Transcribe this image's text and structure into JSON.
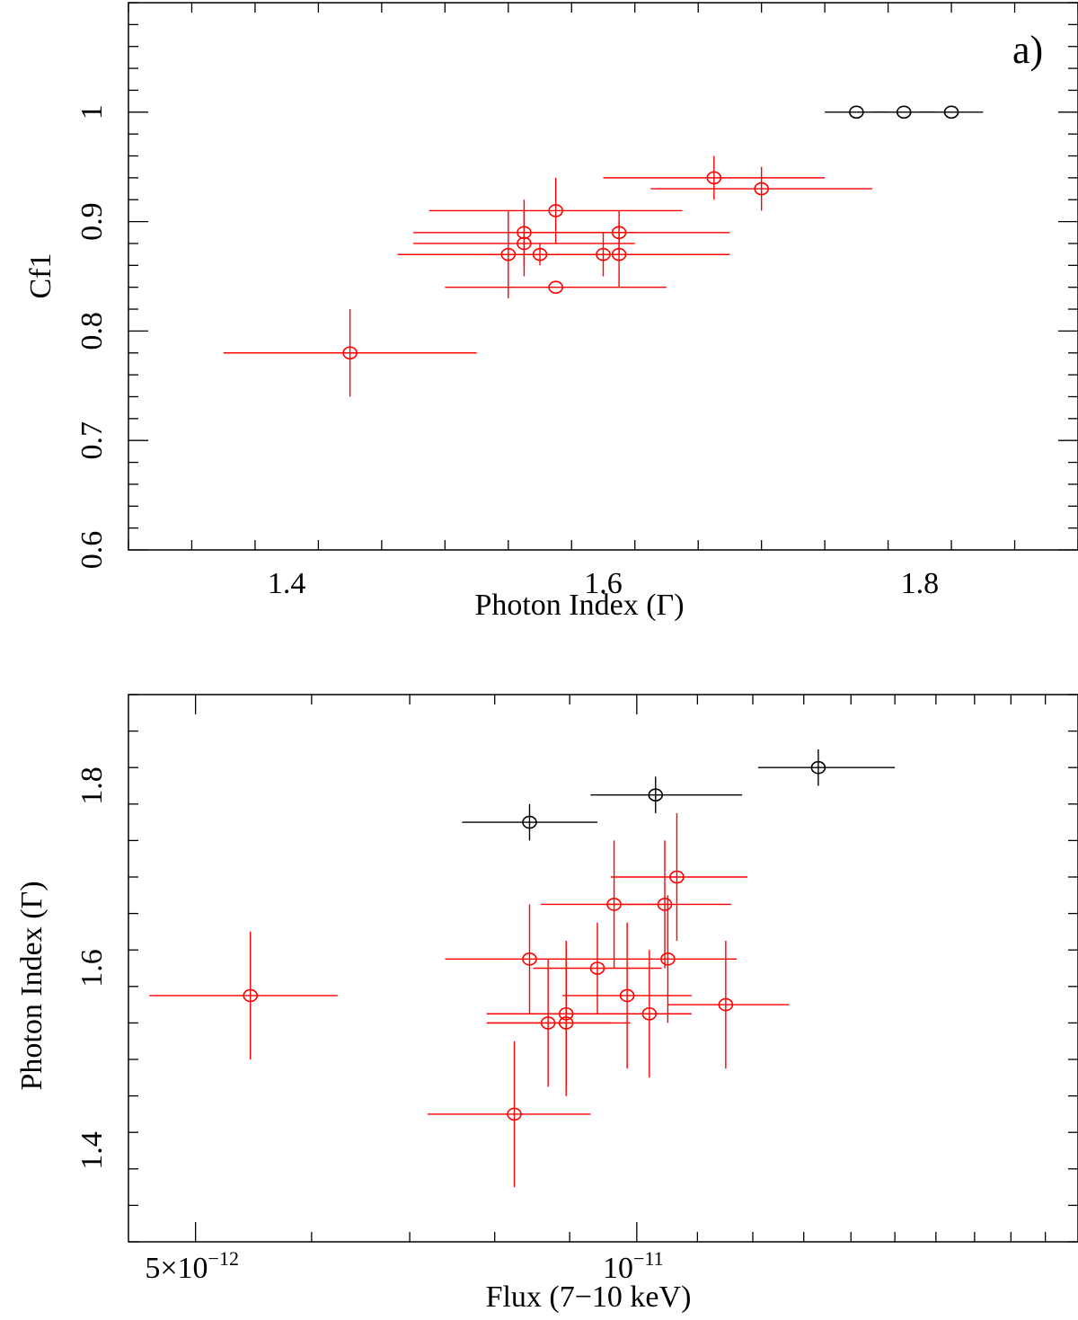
{
  "chart_data": [
    {
      "type": "scatter",
      "panel_label": "a)",
      "xlabel": "Photon Index (Γ)",
      "ylabel": "Cf1",
      "xlim": [
        1.3,
        1.9
      ],
      "ylim": [
        0.6,
        1.1
      ],
      "xticks": [
        1.4,
        1.6,
        1.8
      ],
      "xtick_labels": [
        "1.4",
        "1.6",
        "1.8"
      ],
      "yticks": [
        0.6,
        0.7,
        0.8,
        0.9,
        1.0
      ],
      "ytick_labels": [
        "0.6",
        "0.7",
        "0.8",
        "0.9",
        "1"
      ],
      "grid": false,
      "series": [
        {
          "name": "black",
          "color": "#000000",
          "points": [
            {
              "x": 1.76,
              "y": 1.0,
              "xerr": [
                0.02,
                0.02
              ],
              "yerr": [
                0,
                0
              ]
            },
            {
              "x": 1.79,
              "y": 1.0,
              "xerr": [
                0.02,
                0.02
              ],
              "yerr": [
                0,
                0
              ]
            },
            {
              "x": 1.82,
              "y": 1.0,
              "xerr": [
                0.02,
                0.02
              ],
              "yerr": [
                0,
                0
              ]
            }
          ]
        },
        {
          "name": "red",
          "color": "#ff0000",
          "points": [
            {
              "x": 1.44,
              "y": 0.78,
              "xerr": [
                0.08,
                0.08
              ],
              "yerr": [
                0.04,
                0.04
              ]
            },
            {
              "x": 1.54,
              "y": 0.87,
              "xerr": [
                0.07,
                0.07
              ],
              "yerr": [
                0.04,
                0.04
              ]
            },
            {
              "x": 1.55,
              "y": 0.89,
              "xerr": [
                0.07,
                0.07
              ],
              "yerr": [
                0.03,
                0.03
              ]
            },
            {
              "x": 1.55,
              "y": 0.88,
              "xerr": [
                0.07,
                0.07
              ],
              "yerr": [
                0.03,
                0.03
              ]
            },
            {
              "x": 1.56,
              "y": 0.87,
              "xerr": [
                0.09,
                0.09
              ],
              "yerr": [
                0.01,
                0.01
              ]
            },
            {
              "x": 1.57,
              "y": 0.91,
              "xerr": [
                0.08,
                0.08
              ],
              "yerr": [
                0.03,
                0.03
              ]
            },
            {
              "x": 1.57,
              "y": 0.84,
              "xerr": [
                0.07,
                0.07
              ],
              "yerr": [
                0,
                0
              ]
            },
            {
              "x": 1.6,
              "y": 0.87,
              "xerr": [
                0.08,
                0.08
              ],
              "yerr": [
                0.02,
                0.02
              ]
            },
            {
              "x": 1.61,
              "y": 0.89,
              "xerr": [
                0.07,
                0.07
              ],
              "yerr": [
                0.02,
                0.02
              ]
            },
            {
              "x": 1.61,
              "y": 0.87,
              "xerr": [
                0.07,
                0.07
              ],
              "yerr": [
                0.03,
                0.03
              ]
            },
            {
              "x": 1.67,
              "y": 0.94,
              "xerr": [
                0.07,
                0.07
              ],
              "yerr": [
                0.02,
                0.02
              ]
            },
            {
              "x": 1.7,
              "y": 0.93,
              "xerr": [
                0.07,
                0.07
              ],
              "yerr": [
                0.02,
                0.02
              ]
            }
          ]
        }
      ]
    },
    {
      "type": "scatter",
      "xscale": "log",
      "xlabel": "Flux (7−10 keV)",
      "ylabel": "Photon Index (Γ)",
      "xlim": [
        4.5e-12,
        2e-11
      ],
      "ylim": [
        1.3,
        1.9
      ],
      "xticks_major": [
        5e-12,
        1e-11
      ],
      "xtick_labels": [
        {
          "mantissa": "5×10",
          "exponent": "−12"
        },
        {
          "mantissa": "10",
          "exponent": "−11"
        }
      ],
      "xticks_minor": [
        6e-12,
        7e-12,
        8e-12,
        9e-12,
        1.1e-11,
        1.2e-11,
        1.3e-11,
        1.4e-11,
        1.5e-11,
        1.6e-11,
        1.7e-11,
        1.8e-11,
        1.9e-11
      ],
      "yticks": [
        1.4,
        1.6,
        1.8
      ],
      "ytick_labels": [
        "1.4",
        "1.6",
        "1.8"
      ],
      "grid": false,
      "series": [
        {
          "name": "black",
          "color": "#000000",
          "points": [
            {
              "x": 8.45e-12,
              "y": 1.76,
              "xlo": 7.6e-12,
              "xhi": 9.4e-12,
              "yerr": [
                0.02,
                0.02
              ]
            },
            {
              "x": 1.03e-11,
              "y": 1.79,
              "xlo": 9.3e-12,
              "xhi": 1.18e-11,
              "yerr": [
                0.02,
                0.02
              ]
            },
            {
              "x": 1.33e-11,
              "y": 1.82,
              "xlo": 1.21e-11,
              "xhi": 1.5e-11,
              "yerr": [
                0.02,
                0.02
              ]
            }
          ]
        },
        {
          "name": "red",
          "color": "#ff0000",
          "points": [
            {
              "x": 5.45e-12,
              "y": 1.57,
              "xlo": 4.65e-12,
              "xhi": 6.25e-12,
              "yerr": [
                0.07,
                0.07
              ]
            },
            {
              "x": 8.25e-12,
              "y": 1.44,
              "xlo": 7.2e-12,
              "xhi": 9.3e-12,
              "yerr": [
                0.08,
                0.08
              ]
            },
            {
              "x": 8.45e-12,
              "y": 1.61,
              "xlo": 7.4e-12,
              "xhi": 9.6e-12,
              "yerr": [
                0.06,
                0.06
              ]
            },
            {
              "x": 8.7e-12,
              "y": 1.54,
              "xlo": 7.9e-12,
              "xhi": 9.6e-12,
              "yerr": [
                0.07,
                0.07
              ]
            },
            {
              "x": 8.95e-12,
              "y": 1.54,
              "xlo": 7.9e-12,
              "xhi": 9.9e-12,
              "yerr": [
                0.08,
                0.08
              ]
            },
            {
              "x": 8.95e-12,
              "y": 1.55,
              "xlo": 7.9e-12,
              "xhi": 1.04e-11,
              "yerr": [
                0.08,
                0.08
              ]
            },
            {
              "x": 9.4e-12,
              "y": 1.6,
              "xlo": 8.5e-12,
              "xhi": 1.04e-11,
              "yerr": [
                0.05,
                0.05
              ]
            },
            {
              "x": 9.65e-12,
              "y": 1.67,
              "xlo": 8.6e-12,
              "xhi": 1.05e-11,
              "yerr": [
                0.07,
                0.07
              ]
            },
            {
              "x": 9.85e-12,
              "y": 1.57,
              "xlo": 8.9e-12,
              "xhi": 1.09e-11,
              "yerr": [
                0.08,
                0.08
              ]
            },
            {
              "x": 1.02e-11,
              "y": 1.55,
              "xlo": 9.6e-12,
              "xhi": 1.09e-11,
              "yerr": [
                0.07,
                0.07
              ]
            },
            {
              "x": 1.045e-11,
              "y": 1.67,
              "xlo": 9.5e-12,
              "xhi": 1.16e-11,
              "yerr": [
                0.07,
                0.07
              ]
            },
            {
              "x": 1.05e-11,
              "y": 1.61,
              "xlo": 9.6e-12,
              "xhi": 1.17e-11,
              "yerr": [
                0.07,
                0.07
              ]
            },
            {
              "x": 1.065e-11,
              "y": 1.7,
              "xlo": 9.6e-12,
              "xhi": 1.19e-11,
              "yerr": [
                0.07,
                0.07
              ]
            },
            {
              "x": 1.15e-11,
              "y": 1.56,
              "xlo": 1.05e-11,
              "xhi": 1.27e-11,
              "yerr": [
                0.07,
                0.07
              ]
            }
          ]
        }
      ]
    }
  ]
}
